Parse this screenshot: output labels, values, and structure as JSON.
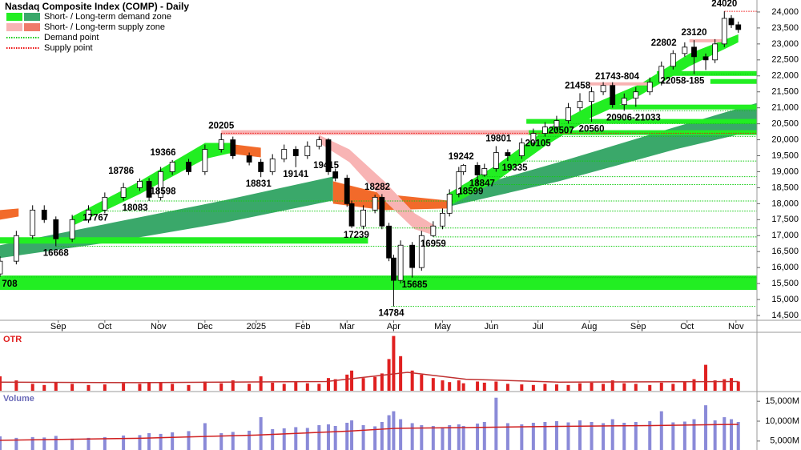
{
  "chart_data": {
    "type": "candlestick",
    "title": "Nasdaq Composite Index (COMP) - Daily",
    "x": [
      0,
      7,
      14,
      19,
      24,
      31,
      38,
      45,
      53,
      60,
      64,
      69,
      74,
      81,
      88,
      95,
      100,
      107,
      112,
      117,
      122,
      127,
      132,
      137,
      141,
      144,
      149,
      151,
      156,
      161,
      164,
      167,
      169,
      172,
      177,
      181,
      186,
      190,
      193,
      197,
      199,
      205,
      208,
      213,
      218,
      224,
      229,
      234,
      239,
      244,
      249,
      254,
      259,
      263,
      268,
      273,
      279,
      284,
      289,
      294,
      298,
      303,
      307,
      311,
      314,
      317
    ],
    "open": [
      15800,
      16200,
      17000,
      17800,
      17500,
      16900,
      17500,
      17800,
      18200,
      18500,
      18700,
      18200,
      19000,
      19300,
      19000,
      19700,
      20000,
      19500,
      19300,
      19000,
      19400,
      19700,
      19500,
      19800,
      20000,
      19000,
      18800,
      18000,
      17300,
      17800,
      18200,
      17300,
      16300,
      15600,
      16700,
      16000,
      17000,
      17300,
      17700,
      18300,
      19000,
      19200,
      18900,
      19100,
      19600,
      19500,
      19900,
      20200,
      20400,
      20600,
      21000,
      21200,
      21500,
      21700,
      21100,
      21300,
      21500,
      21800,
      22300,
      22700,
      22900,
      22600,
      22500,
      23000,
      23800,
      23600
    ],
    "high": [
      16350,
      17150,
      17950,
      17950,
      17600,
      17650,
      17950,
      18350,
      18650,
      18786,
      18800,
      19150,
      19366,
      19400,
      19850,
      20205,
      20100,
      19600,
      19400,
      19550,
      19850,
      19800,
      19950,
      20100,
      20050,
      19100,
      18900,
      18100,
      17950,
      18282,
      18300,
      17400,
      16400,
      16850,
      16800,
      17150,
      17450,
      17850,
      18450,
      19150,
      19242,
      19300,
      19250,
      19801,
      19700,
      20050,
      20350,
      20550,
      20750,
      21150,
      21458,
      21650,
      21804,
      21800,
      21450,
      21650,
      21950,
      22450,
      22802,
      23050,
      23120,
      22700,
      23150,
      24020,
      23900,
      23700
    ],
    "low": [
      15708,
      16100,
      16900,
      17400,
      16668,
      16800,
      17400,
      17700,
      18100,
      18400,
      18083,
      18100,
      18900,
      18900,
      18900,
      19600,
      19400,
      19200,
      18831,
      18900,
      19300,
      19141,
      19400,
      19700,
      18900,
      18700,
      17900,
      17239,
      17200,
      17700,
      17200,
      16200,
      14784,
      15500,
      15685,
      15900,
      16959,
      17200,
      17600,
      18200,
      18900,
      18599,
      18847,
      19000,
      19335,
      19400,
      19800,
      20100,
      20300,
      20507,
      20900,
      20560,
      21400,
      21000,
      20906,
      21033,
      21400,
      21700,
      22200,
      22600,
      22058,
      22185,
      22400,
      22900,
      23500,
      23350
    ],
    "close": [
      16200,
      17000,
      17800,
      17500,
      16900,
      17500,
      17800,
      18200,
      18500,
      18700,
      18200,
      19000,
      19300,
      19000,
      19700,
      20000,
      19500,
      19300,
      19000,
      19400,
      19700,
      19500,
      19800,
      20000,
      19000,
      18800,
      18000,
      17300,
      17800,
      18200,
      17300,
      16300,
      15600,
      16700,
      16000,
      17000,
      17300,
      17700,
      18300,
      19000,
      19200,
      18900,
      19100,
      19600,
      19500,
      19900,
      20200,
      20400,
      20600,
      21000,
      21200,
      21500,
      21700,
      21100,
      21300,
      21500,
      21800,
      22300,
      22700,
      22900,
      22600,
      22500,
      23000,
      23800,
      23600,
      23450
    ],
    "up_color": "#ffffff",
    "down_color": "#000000",
    "xlim": [
      0,
      325
    ],
    "ylim": [
      14350,
      24375
    ],
    "xticks": [
      {
        "value": 25,
        "label": "Sep"
      },
      {
        "value": 45,
        "label": "Oct"
      },
      {
        "value": 68,
        "label": "Nov"
      },
      {
        "value": 88,
        "label": "Dec"
      },
      {
        "value": 110,
        "label": "2025"
      },
      {
        "value": 130,
        "label": "Feb"
      },
      {
        "value": 149,
        "label": "Mar"
      },
      {
        "value": 169,
        "label": "Apr"
      },
      {
        "value": 190,
        "label": "May"
      },
      {
        "value": 211,
        "label": "Jun"
      },
      {
        "value": 231,
        "label": "Jul"
      },
      {
        "value": 253,
        "label": "Aug"
      },
      {
        "value": 274,
        "label": "Sep"
      },
      {
        "value": 295,
        "label": "Oct"
      },
      {
        "value": 316,
        "label": "Nov"
      }
    ],
    "yticks": [
      {
        "value": 14500,
        "label": "14,500"
      },
      {
        "value": 15000,
        "label": "15,000"
      },
      {
        "value": 15500,
        "label": "15,500"
      },
      {
        "value": 16000,
        "label": "16,000"
      },
      {
        "value": 16500,
        "label": "16,500"
      },
      {
        "value": 17000,
        "label": "17,000"
      },
      {
        "value": 17500,
        "label": "17,500"
      },
      {
        "value": 18000,
        "label": "18,000"
      },
      {
        "value": 18500,
        "label": "18,500"
      },
      {
        "value": 19000,
        "label": "19,000"
      },
      {
        "value": 19500,
        "label": "19,500"
      },
      {
        "value": 20000,
        "label": "20,000"
      },
      {
        "value": 20500,
        "label": "20,500"
      },
      {
        "value": 21000,
        "label": "21,000"
      },
      {
        "value": 21500,
        "label": "21,500"
      },
      {
        "value": 22000,
        "label": "22,000"
      },
      {
        "value": 22500,
        "label": "22,500"
      },
      {
        "value": 23000,
        "label": "23,000"
      },
      {
        "value": 23500,
        "label": "23,500"
      },
      {
        "value": 24000,
        "label": "24,000"
      }
    ],
    "grid": false,
    "legend": [
      {
        "label": "Short- / Long-term demand zone",
        "colors": [
          "#22ee22",
          "#3aa86a"
        ]
      },
      {
        "label": "Short- / Long-term supply zone",
        "colors": [
          "#f8b4b4",
          "#f07a6a"
        ]
      },
      {
        "label": "Demand point",
        "color": "#11cc11"
      },
      {
        "label": "Supply point",
        "color": "#ee1111"
      }
    ],
    "bands": [
      {
        "color": "#3aa86a",
        "x": [
          0,
          48,
          96,
          143,
          null,
          192,
          240,
          290,
          325
        ],
        "low": [
          16300,
          16800,
          17400,
          18100,
          null,
          17900,
          18700,
          19700,
          20300
        ],
        "high": [
          16700,
          17400,
          18100,
          18850,
          null,
          18300,
          19300,
          20400,
          21150
        ]
      },
      {
        "color": "#f26a2a",
        "x": [
          0,
          8,
          null,
          95,
          112,
          null,
          143,
          165,
          192
        ],
        "low": [
          17500,
          17600,
          null,
          19600,
          19450,
          null,
          18000,
          17800,
          17850
        ],
        "high": [
          17800,
          17850,
          null,
          19900,
          19750,
          null,
          18700,
          18300,
          18100
        ]
      },
      {
        "color": "#f8b4b4",
        "x": [
          137,
          150,
          165,
          178,
          187
        ],
        "low": [
          19900,
          19300,
          18100,
          17200,
          17000
        ],
        "high": [
          20150,
          19700,
          18700,
          17700,
          17300
        ]
      },
      {
        "color": "#22ee22",
        "x": [
          31,
          60,
          88,
          100,
          null,
          192,
          213,
          234,
          254,
          275,
          296,
          317
        ],
        "low": [
          17300,
          18300,
          19400,
          19600,
          null,
          17900,
          18700,
          19800,
          20700,
          21400,
          22300,
          23050
        ],
        "high": [
          17600,
          18700,
          19900,
          19900,
          null,
          18300,
          19200,
          20300,
          21100,
          21750,
          22700,
          23300
        ]
      }
    ],
    "zones": [
      {
        "color": "#22ee22",
        "x0": 0,
        "x1": 325,
        "low": 15300,
        "high": 15750
      },
      {
        "color": "#22ee22",
        "x0": 0,
        "x1": 158,
        "low": 16750,
        "high": 16950
      },
      {
        "color": "#22ee22",
        "x0": 282,
        "x1": 325,
        "low": 22000,
        "high": 22150
      },
      {
        "color": "#22ee22",
        "x0": 305,
        "x1": 325,
        "low": 21750,
        "high": 21900
      },
      {
        "color": "#22ee22",
        "x0": 262,
        "x1": 325,
        "low": 20950,
        "high": 21100
      },
      {
        "color": "#22ee22",
        "x0": 226,
        "x1": 325,
        "low": 20500,
        "high": 20650
      },
      {
        "color": "#22ee22",
        "x0": 226,
        "x1": 325,
        "low": 20150,
        "high": 20300
      },
      {
        "color": "#f8b4b4",
        "x0": 95,
        "x1": 227,
        "low": 20150,
        "high": 20300
      },
      {
        "color": "#f8b4b4",
        "x0": 253,
        "x1": 280,
        "low": 21700,
        "high": 21800
      },
      {
        "color": "#f8b4b4",
        "x0": 296,
        "x1": 310,
        "low": 23050,
        "high": 23150
      }
    ],
    "annotations": [
      {
        "x": 2,
        "value": 15708,
        "label": "708",
        "pos": "below",
        "point": "demand"
      },
      {
        "x": 24,
        "value": 16668,
        "pos": "below",
        "point": "demand"
      },
      {
        "x": 41,
        "value": 17767,
        "pos": "below",
        "point": "demand"
      },
      {
        "x": 52,
        "value": 18786,
        "pos": "above"
      },
      {
        "x": 58,
        "value": 18083,
        "pos": "below",
        "point": "demand"
      },
      {
        "x": 70,
        "value": 18598,
        "pos": "below"
      },
      {
        "x": 70,
        "value": 19366,
        "pos": "above"
      },
      {
        "x": 95,
        "value": 20205,
        "pos": "above",
        "point": "supply"
      },
      {
        "x": 111,
        "value": 18831,
        "pos": "below"
      },
      {
        "x": 127,
        "value": 19141,
        "pos": "below"
      },
      {
        "x": 140,
        "value": 19415,
        "pos": "below"
      },
      {
        "x": 162,
        "value": 18282,
        "pos": "above"
      },
      {
        "x": 153,
        "value": 17239,
        "pos": "below",
        "point": "demand"
      },
      {
        "x": 186,
        "value": 16959,
        "pos": "below",
        "point": "demand"
      },
      {
        "x": 178,
        "value": 15685,
        "pos": "below",
        "point": "demand"
      },
      {
        "x": 168,
        "value": 14784,
        "pos": "below",
        "point": "demand"
      },
      {
        "x": 198,
        "value": 19242,
        "pos": "above"
      },
      {
        "x": 202,
        "value": 18599,
        "pos": "below",
        "point": "demand"
      },
      {
        "x": 207,
        "value": 18847,
        "pos": "below",
        "point": "demand"
      },
      {
        "x": 214,
        "value": 19801,
        "pos": "above"
      },
      {
        "x": 221,
        "value": 19335,
        "pos": "below",
        "point": "demand"
      },
      {
        "x": 231,
        "value": 20105,
        "pos": "below",
        "point": "demand"
      },
      {
        "x": 241,
        "value": 20507,
        "pos": "below",
        "point": "demand"
      },
      {
        "x": 254,
        "value": 20560,
        "pos": "below"
      },
      {
        "x": 248,
        "value": 21458,
        "pos": "above"
      },
      {
        "x": 265,
        "value": 21743,
        "label": "21743-804",
        "pos": "above"
      },
      {
        "x": 272,
        "value": 20906,
        "label": "20906-21033",
        "pos": "below",
        "point": "demand"
      },
      {
        "x": 285,
        "value": 22802,
        "pos": "above"
      },
      {
        "x": 293,
        "value": 22058,
        "label": "22058-185",
        "pos": "below",
        "point": "demand"
      },
      {
        "x": 298,
        "value": 23120,
        "pos": "above"
      },
      {
        "x": 311,
        "value": 24020,
        "pos": "above",
        "point": "supply"
      }
    ],
    "otr": {
      "name": "OTR",
      "color": "#e02020",
      "ma_color": "#c03030",
      "values": [
        2.5,
        1.8,
        1.2,
        1.0,
        1.5,
        1.2,
        1.0,
        1.1,
        1.3,
        1.2,
        1.5,
        1.4,
        1.2,
        1.0,
        1.6,
        1.3,
        1.8,
        1.2,
        2.5,
        1.4,
        1.2,
        1.5,
        1.3,
        1.2,
        2.2,
        2.0,
        2.8,
        3.5,
        2.2,
        2.4,
        3.0,
        5.5,
        9.5,
        6.0,
        3.5,
        2.8,
        2.2,
        1.8,
        1.5,
        1.8,
        1.3,
        1.6,
        1.4,
        1.6,
        1.2,
        1.1,
        1.0,
        1.2,
        1.1,
        1.0,
        1.3,
        1.4,
        1.2,
        1.8,
        1.3,
        1.2,
        1.0,
        1.4,
        1.2,
        1.5,
        2.0,
        4.5,
        1.8,
        2.0,
        2.2,
        1.6
      ],
      "ylim": [
        0,
        10
      ],
      "ma": {
        "x": [
          0,
          60,
          140,
          160,
          175,
          200,
          240,
          317
        ],
        "values": [
          1.5,
          1.4,
          1.6,
          2.5,
          3.2,
          2.0,
          1.5,
          1.6
        ]
      }
    },
    "volume": {
      "name": "Volume",
      "color": "#8a8ad8",
      "ma_color": "#d02020",
      "values": [
        6200,
        5800,
        6000,
        5900,
        6300,
        5600,
        5800,
        6000,
        6400,
        6500,
        7000,
        6800,
        7200,
        7500,
        9500,
        7000,
        7300,
        7600,
        11000,
        8000,
        8200,
        8500,
        8300,
        9000,
        9200,
        8800,
        9600,
        10200,
        9000,
        8700,
        9800,
        11500,
        12500,
        10500,
        9500,
        9000,
        8800,
        8500,
        9000,
        9200,
        8800,
        9400,
        9800,
        15900,
        9500,
        9200,
        9600,
        9800,
        10000,
        9700,
        10200,
        9800,
        9500,
        10500,
        9600,
        9800,
        10000,
        12500,
        9700,
        9900,
        10500,
        14000,
        10200,
        11000,
        10500,
        9800
      ],
      "ylim": [
        2750,
        17250
      ],
      "yticks": [
        {
          "value": 5000,
          "label": "5,000M"
        },
        {
          "value": 10000,
          "label": "10,000M"
        },
        {
          "value": 15000,
          "label": "15,000M"
        }
      ],
      "ma": {
        "x": [
          0,
          60,
          110,
          150,
          170,
          200,
          240,
          280,
          317
        ],
        "values": [
          5200,
          5700,
          6500,
          7500,
          8200,
          8400,
          8700,
          8900,
          9200
        ]
      }
    }
  }
}
